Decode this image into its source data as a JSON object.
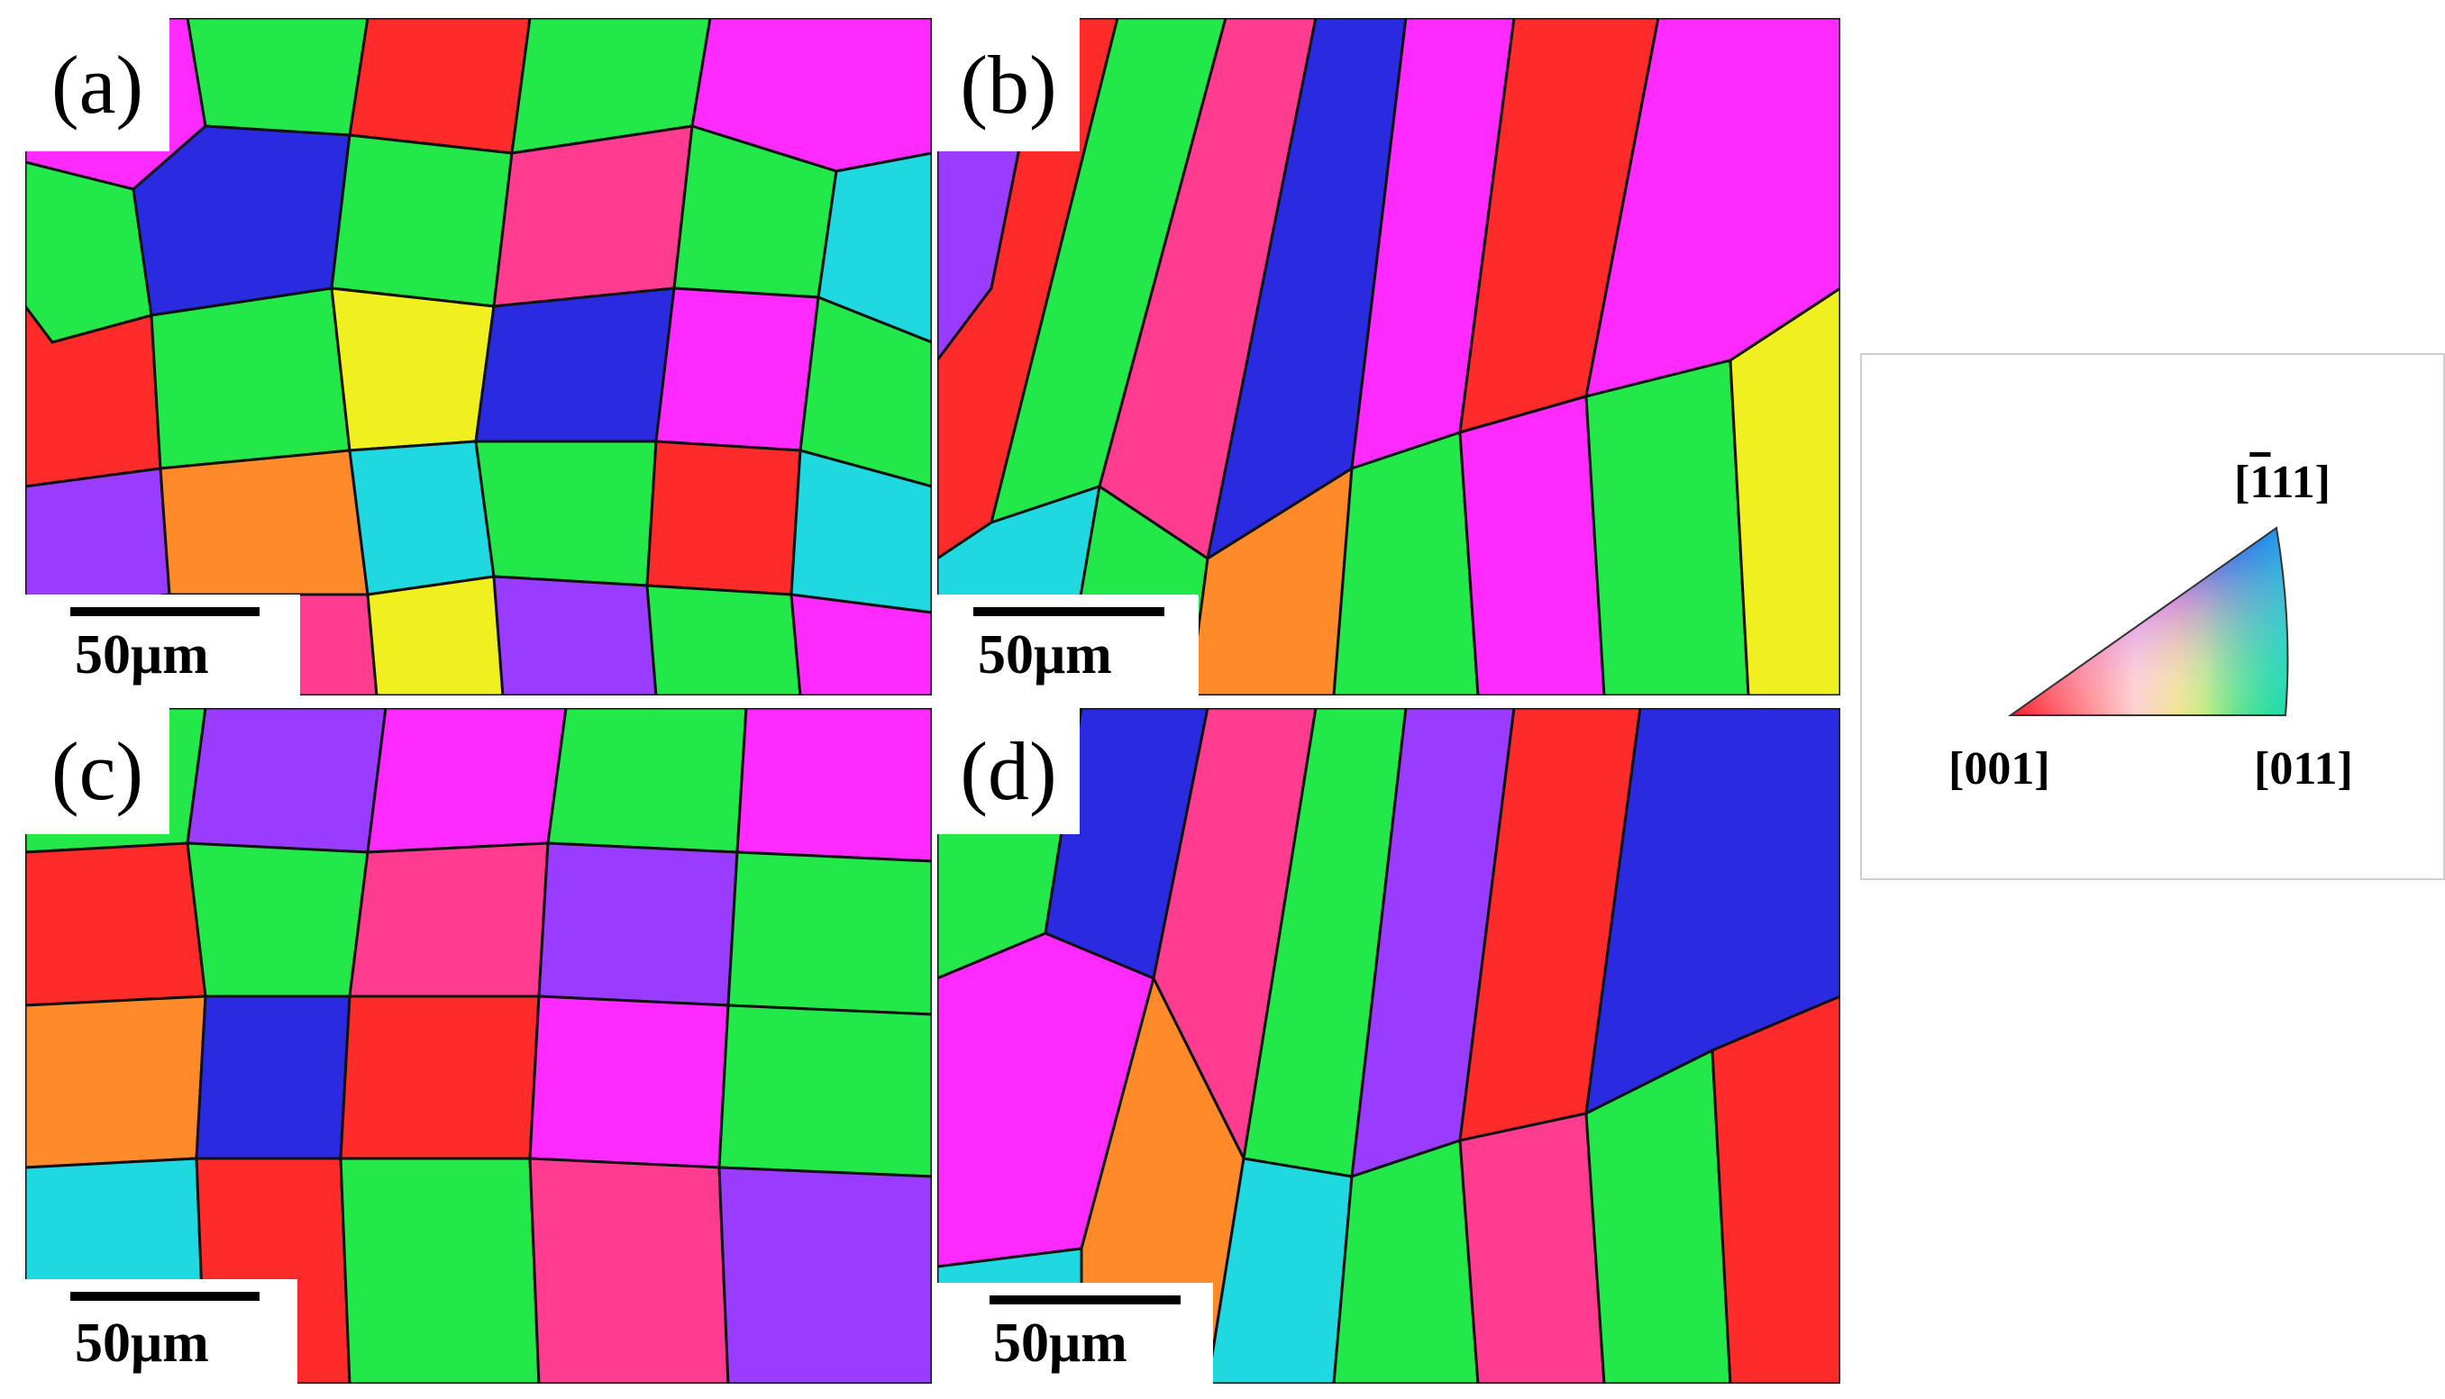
{
  "figure": {
    "panels": [
      {
        "label": "(a)",
        "scale": "50μm"
      },
      {
        "label": "(b)",
        "scale": "50μm"
      },
      {
        "label": "(c)",
        "scale": "50μm"
      },
      {
        "label": "(d)",
        "scale": "50μm"
      }
    ],
    "legend": {
      "label_001": "[001]",
      "label_011": "[011]",
      "label_111_prefix": "[",
      "label_111_bar": "1",
      "label_111_suffix": "11]"
    },
    "colors": {
      "red": "#ff2a2a",
      "green": "#22e84a",
      "blue": "#2a2ae0",
      "magenta": "#ff2aff",
      "purple": "#9a3cff",
      "cyan": "#20d8e0",
      "yellow": "#f0f020",
      "orange": "#ff8a2a",
      "pink": "#ff3c90"
    }
  }
}
